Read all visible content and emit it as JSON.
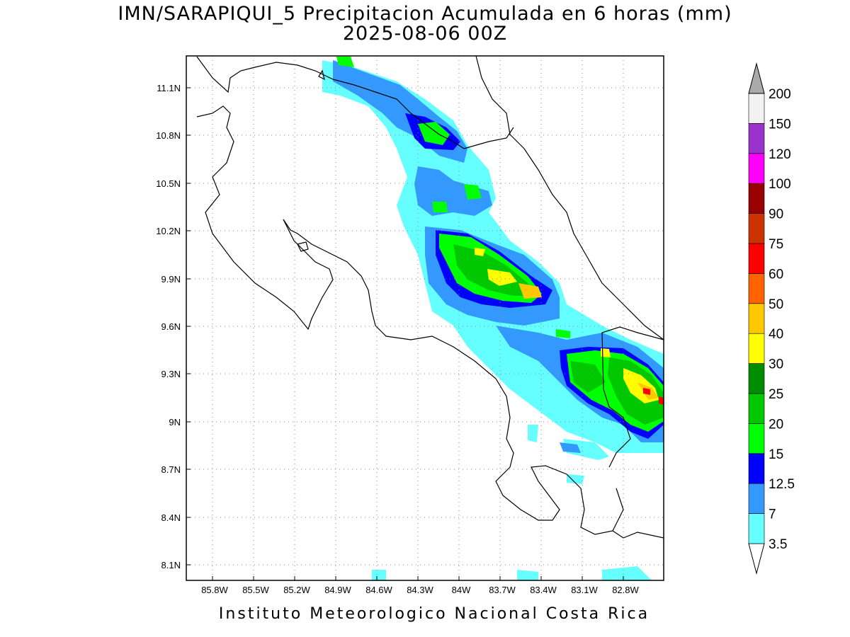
{
  "title": {
    "line1": "IMN/SARAPIQUI_5 Precipitacion Acumulada en 6 horas (mm)",
    "line2": "2025-08-06 00Z"
  },
  "footer": "Instituto Meteorologico Nacional Costa Rica",
  "map": {
    "lon_range": [
      -86.1,
      -82.65
    ],
    "lat_range": [
      8.0,
      11.3
    ],
    "lat_labels": [
      "11.1N",
      "10.8N",
      "10.5N",
      "10.2N",
      "9.9N",
      "9.6N",
      "9.3N",
      "9N",
      "8.7N",
      "8.4N",
      "8.1N"
    ],
    "lon_labels": [
      "85.8W",
      "85.5W",
      "85.2W",
      "84.9W",
      "84.6W",
      "84.3W",
      "84W",
      "83.7W",
      "83.4W",
      "83.1W",
      "82.8W"
    ],
    "grid": true
  },
  "colorbar": {
    "levels": [
      {
        "label": "3.5",
        "color": "#66ffff"
      },
      {
        "label": "7",
        "color": "#3399ff"
      },
      {
        "label": "12.5",
        "color": "#0000ff"
      },
      {
        "label": "15",
        "color": "#00ff00"
      },
      {
        "label": "20",
        "color": "#00c800"
      },
      {
        "label": "25",
        "color": "#008c00"
      },
      {
        "label": "30",
        "color": "#ffff00"
      },
      {
        "label": "40",
        "color": "#ffc800"
      },
      {
        "label": "50",
        "color": "#ff6400"
      },
      {
        "label": "60",
        "color": "#ff0000"
      },
      {
        "label": "75",
        "color": "#cc3300"
      },
      {
        "label": "90",
        "color": "#990000"
      },
      {
        "label": "100",
        "color": "#ff00ff"
      },
      {
        "label": "120",
        "color": "#9933cc"
      },
      {
        "label": "150",
        "color": "#f2f2f2"
      },
      {
        "label": "200",
        "color": "#aaaaaa"
      }
    ]
  }
}
